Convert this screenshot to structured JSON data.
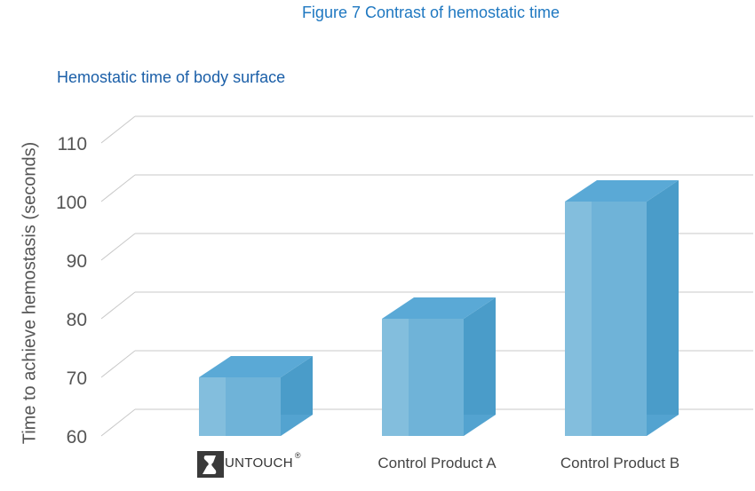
{
  "figure_title": "Figure 7  Contrast of hemostatic time",
  "logo": {
    "text": "UNTOUCH",
    "mark": "S",
    "registered": "®"
  },
  "colors": {
    "front_light": "#8cc3e0",
    "front": "#6fb3d8",
    "top": "#5aa9d6",
    "side": "#4a9cc9",
    "grid": "#c8c8c8",
    "tick_text": "#555555",
    "title": "#1f78c1"
  },
  "chart_data": {
    "type": "bar",
    "title": "Hemostatic time of body surface",
    "xlabel": "",
    "ylabel": "Time to achieve hemostasis (seconds)",
    "categories": [
      "",
      "Control Product A",
      "Control Product B"
    ],
    "values": [
      70,
      80,
      100
    ],
    "ylim": [
      60,
      110
    ],
    "yticks": [
      60,
      70,
      80,
      90,
      100,
      110
    ],
    "grid": true,
    "style": "3d"
  }
}
